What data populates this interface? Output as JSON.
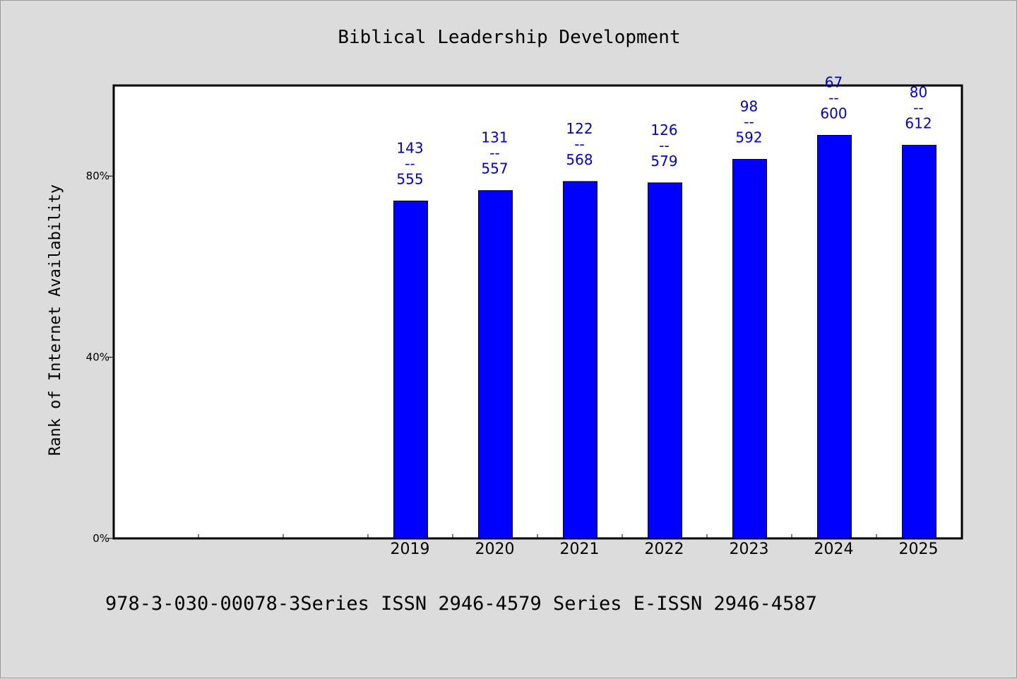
{
  "chart_data": {
    "type": "bar",
    "title": "Biblical Leadership Development",
    "xlabel": "",
    "ylabel": "Rank of Internet Availability",
    "categories": [
      "",
      "",
      "",
      "2019",
      "2020",
      "2021",
      "2022",
      "2023",
      "2024",
      "2025"
    ],
    "values": [
      null,
      null,
      null,
      74.5,
      76.8,
      78.8,
      78.5,
      83.7,
      89.0,
      86.8
    ],
    "series": [
      {
        "values": [
          null,
          null,
          null,
          74.5,
          76.8,
          78.8,
          78.5,
          83.7,
          89.0,
          86.8
        ],
        "data_labels": [
          null,
          null,
          null,
          [
            "143",
            "--",
            "555"
          ],
          [
            "131",
            "--",
            "557"
          ],
          [
            "122",
            "--",
            "568"
          ],
          [
            "126",
            "--",
            "579"
          ],
          [
            "98",
            "--",
            "592"
          ],
          [
            "67",
            "--",
            "600"
          ],
          [
            "80",
            "--",
            "612"
          ]
        ]
      }
    ],
    "yticks": [
      {
        "value": 0,
        "label": "0%"
      },
      {
        "value": 40,
        "label": "40%"
      },
      {
        "value": 80,
        "label": "80%"
      }
    ],
    "ylim": [
      0,
      100
    ],
    "grid": false,
    "legend": "none",
    "colors": {
      "bar": "#0000ff",
      "data_label": "#0000cc",
      "background": "#dcdcdc",
      "plot_background": "#ffffff"
    }
  },
  "footer": "978-3-030-00078-3Series ISSN 2946-4579 Series E-ISSN 2946-4587"
}
